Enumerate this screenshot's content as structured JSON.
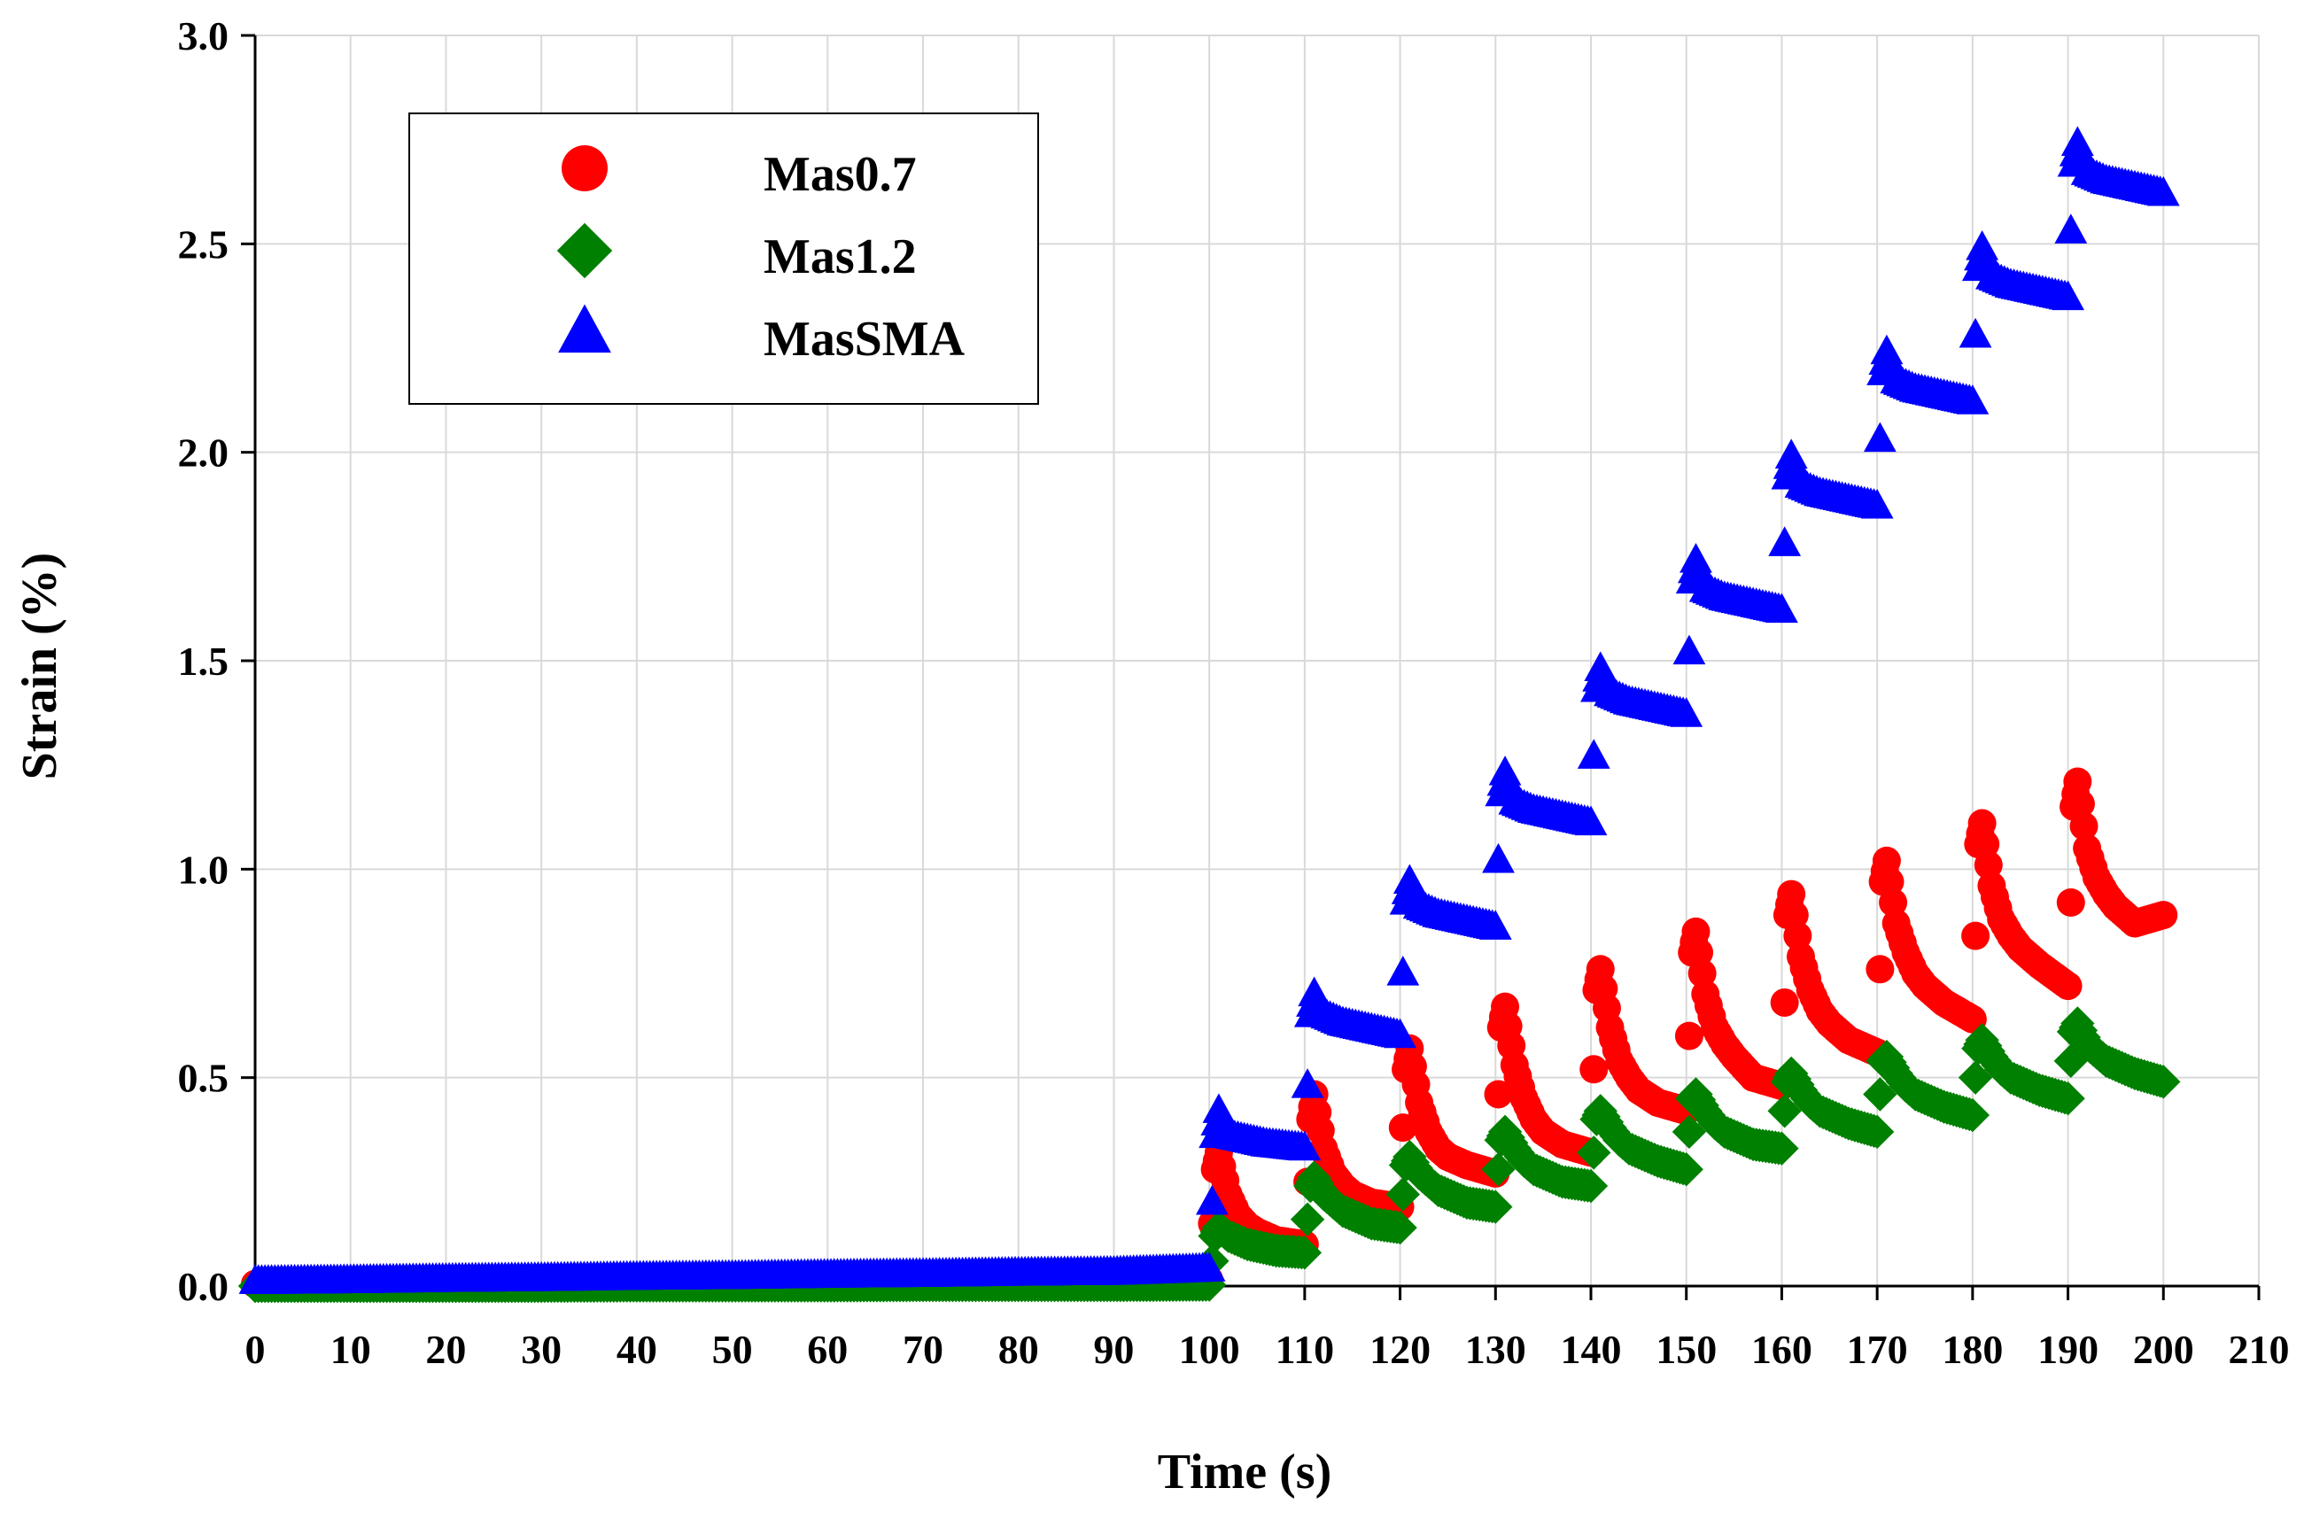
{
  "chart_data": {
    "type": "scatter",
    "title": "",
    "xlabel": "Time (s)",
    "ylabel": "Strain (%)",
    "xlim": [
      0,
      210
    ],
    "ylim": [
      0,
      3.0
    ],
    "x_ticks": [
      0,
      10,
      20,
      30,
      40,
      50,
      60,
      70,
      80,
      90,
      100,
      110,
      120,
      130,
      140,
      150,
      160,
      170,
      180,
      190,
      200,
      210
    ],
    "y_ticks": [
      "0.0",
      "0.5",
      "1.0",
      "1.5",
      "2.0",
      "2.5",
      "3.0"
    ],
    "grid": true,
    "legend_position": "top-left",
    "series": [
      {
        "name": "Mas0.7",
        "marker": "circle",
        "color": "#ff0000",
        "x": [
          0,
          10,
          20,
          30,
          40,
          50,
          60,
          70,
          80,
          90,
          100,
          100.3,
          100.6,
          101,
          102,
          103,
          104,
          105,
          107,
          110,
          110.3,
          110.6,
          111,
          112,
          113,
          114,
          115,
          117,
          120,
          120.3,
          120.6,
          121,
          122,
          123,
          124,
          125,
          127,
          130,
          130.3,
          130.6,
          131,
          132,
          133,
          134,
          135,
          137,
          140,
          140.3,
          140.6,
          141,
          142,
          143,
          144,
          145,
          147,
          150,
          150.3,
          150.6,
          151,
          152,
          153,
          154,
          155,
          157,
          160,
          160.3,
          160.6,
          161,
          162,
          163,
          164,
          165,
          167,
          170,
          170.3,
          170.6,
          171,
          172,
          173,
          174,
          175,
          177,
          180,
          180.3,
          180.6,
          181,
          182,
          183,
          184,
          185,
          187,
          190,
          190.3,
          190.6,
          191,
          192,
          193,
          194,
          195,
          197,
          200
        ],
        "y": [
          0.005,
          0.006,
          0.007,
          0.008,
          0.009,
          0.01,
          0.011,
          0.012,
          0.013,
          0.014,
          0.015,
          0.15,
          0.28,
          0.32,
          0.22,
          0.17,
          0.145,
          0.13,
          0.11,
          0.1,
          0.25,
          0.4,
          0.46,
          0.33,
          0.27,
          0.24,
          0.22,
          0.2,
          0.19,
          0.38,
          0.52,
          0.57,
          0.44,
          0.37,
          0.33,
          0.31,
          0.29,
          0.27,
          0.46,
          0.62,
          0.67,
          0.53,
          0.45,
          0.4,
          0.37,
          0.34,
          0.32,
          0.52,
          0.71,
          0.76,
          0.62,
          0.54,
          0.5,
          0.47,
          0.44,
          0.42,
          0.6,
          0.8,
          0.85,
          0.7,
          0.62,
          0.58,
          0.55,
          0.5,
          0.48,
          0.68,
          0.89,
          0.94,
          0.79,
          0.71,
          0.66,
          0.63,
          0.59,
          0.56,
          0.76,
          0.97,
          1.02,
          0.87,
          0.8,
          0.75,
          0.72,
          0.68,
          0.64,
          0.84,
          1.06,
          1.11,
          0.96,
          0.88,
          0.84,
          0.81,
          0.77,
          0.72,
          0.92,
          1.15,
          1.21,
          1.05,
          0.98,
          0.94,
          0.91,
          0.87,
          0.89
        ]
      },
      {
        "name": "Mas1.2",
        "marker": "diamond",
        "color": "#008000",
        "x": [
          0,
          10,
          20,
          30,
          40,
          50,
          60,
          70,
          80,
          90,
          100,
          100.3,
          100.6,
          101,
          102,
          103,
          104,
          105,
          107,
          110,
          110.3,
          110.6,
          111,
          112,
          113,
          114,
          115,
          117,
          120,
          120.3,
          120.6,
          121,
          122,
          123,
          124,
          125,
          127,
          130,
          130.3,
          130.6,
          131,
          132,
          133,
          134,
          135,
          137,
          140,
          140.3,
          140.6,
          141,
          142,
          143,
          144,
          145,
          147,
          150,
          150.3,
          150.6,
          151,
          152,
          153,
          154,
          155,
          157,
          160,
          160.3,
          160.6,
          161,
          162,
          163,
          164,
          165,
          167,
          170,
          170.3,
          170.6,
          171,
          172,
          173,
          174,
          175,
          177,
          180,
          180.3,
          180.6,
          181,
          182,
          183,
          184,
          185,
          187,
          190,
          190.3,
          190.6,
          191,
          192,
          193,
          194,
          195,
          197,
          200
        ],
        "y": [
          0.0,
          0.0,
          0.0,
          0.0,
          0.001,
          0.001,
          0.001,
          0.002,
          0.002,
          0.002,
          0.003,
          0.06,
          0.12,
          0.14,
          0.12,
          0.11,
          0.1,
          0.095,
          0.085,
          0.08,
          0.16,
          0.24,
          0.26,
          0.22,
          0.2,
          0.18,
          0.17,
          0.15,
          0.14,
          0.22,
          0.29,
          0.31,
          0.27,
          0.25,
          0.23,
          0.22,
          0.2,
          0.19,
          0.28,
          0.35,
          0.37,
          0.33,
          0.3,
          0.28,
          0.27,
          0.25,
          0.24,
          0.32,
          0.4,
          0.42,
          0.38,
          0.35,
          0.33,
          0.32,
          0.3,
          0.28,
          0.37,
          0.45,
          0.46,
          0.42,
          0.39,
          0.37,
          0.36,
          0.34,
          0.33,
          0.42,
          0.49,
          0.51,
          0.47,
          0.44,
          0.42,
          0.41,
          0.39,
          0.37,
          0.46,
          0.54,
          0.55,
          0.51,
          0.48,
          0.46,
          0.45,
          0.43,
          0.41,
          0.5,
          0.57,
          0.59,
          0.55,
          0.52,
          0.5,
          0.49,
          0.47,
          0.45,
          0.54,
          0.61,
          0.63,
          0.58,
          0.56,
          0.54,
          0.53,
          0.51,
          0.49
        ]
      },
      {
        "name": "MasSMA",
        "marker": "triangle",
        "color": "#0000ff",
        "x": [
          0,
          10,
          20,
          30,
          40,
          50,
          60,
          70,
          80,
          90,
          100,
          100.3,
          100.6,
          101,
          102,
          104,
          106,
          108,
          110,
          110.3,
          110.6,
          111,
          112,
          114,
          116,
          118,
          120,
          120.3,
          120.6,
          121,
          122,
          124,
          126,
          128,
          130,
          130.3,
          130.6,
          131,
          132,
          134,
          136,
          138,
          140,
          140.3,
          140.6,
          141,
          142,
          144,
          146,
          148,
          150,
          150.3,
          150.6,
          151,
          152,
          154,
          156,
          158,
          160,
          160.3,
          160.6,
          161,
          162,
          164,
          166,
          168,
          170,
          170.3,
          170.6,
          171,
          172,
          174,
          176,
          178,
          180,
          180.3,
          180.6,
          181,
          182,
          184,
          186,
          188,
          190,
          190.3,
          190.6,
          191,
          192,
          194,
          196,
          198,
          200
        ],
        "y": [
          0.01,
          0.012,
          0.015,
          0.017,
          0.02,
          0.022,
          0.025,
          0.027,
          0.03,
          0.032,
          0.04,
          0.2,
          0.36,
          0.42,
          0.36,
          0.35,
          0.34,
          0.335,
          0.33,
          0.48,
          0.65,
          0.7,
          0.65,
          0.63,
          0.62,
          0.61,
          0.6,
          0.75,
          0.92,
          0.97,
          0.91,
          0.89,
          0.88,
          0.87,
          0.86,
          1.02,
          1.18,
          1.23,
          1.16,
          1.14,
          1.13,
          1.12,
          1.11,
          1.27,
          1.43,
          1.48,
          1.42,
          1.4,
          1.39,
          1.38,
          1.37,
          1.52,
          1.69,
          1.74,
          1.67,
          1.65,
          1.64,
          1.63,
          1.62,
          1.78,
          1.94,
          1.99,
          1.92,
          1.9,
          1.89,
          1.88,
          1.87,
          2.03,
          2.19,
          2.24,
          2.17,
          2.15,
          2.14,
          2.13,
          2.12,
          2.28,
          2.44,
          2.49,
          2.42,
          2.4,
          2.39,
          2.38,
          2.37,
          2.53,
          2.69,
          2.74,
          2.67,
          2.65,
          2.64,
          2.63,
          2.62
        ]
      }
    ]
  }
}
